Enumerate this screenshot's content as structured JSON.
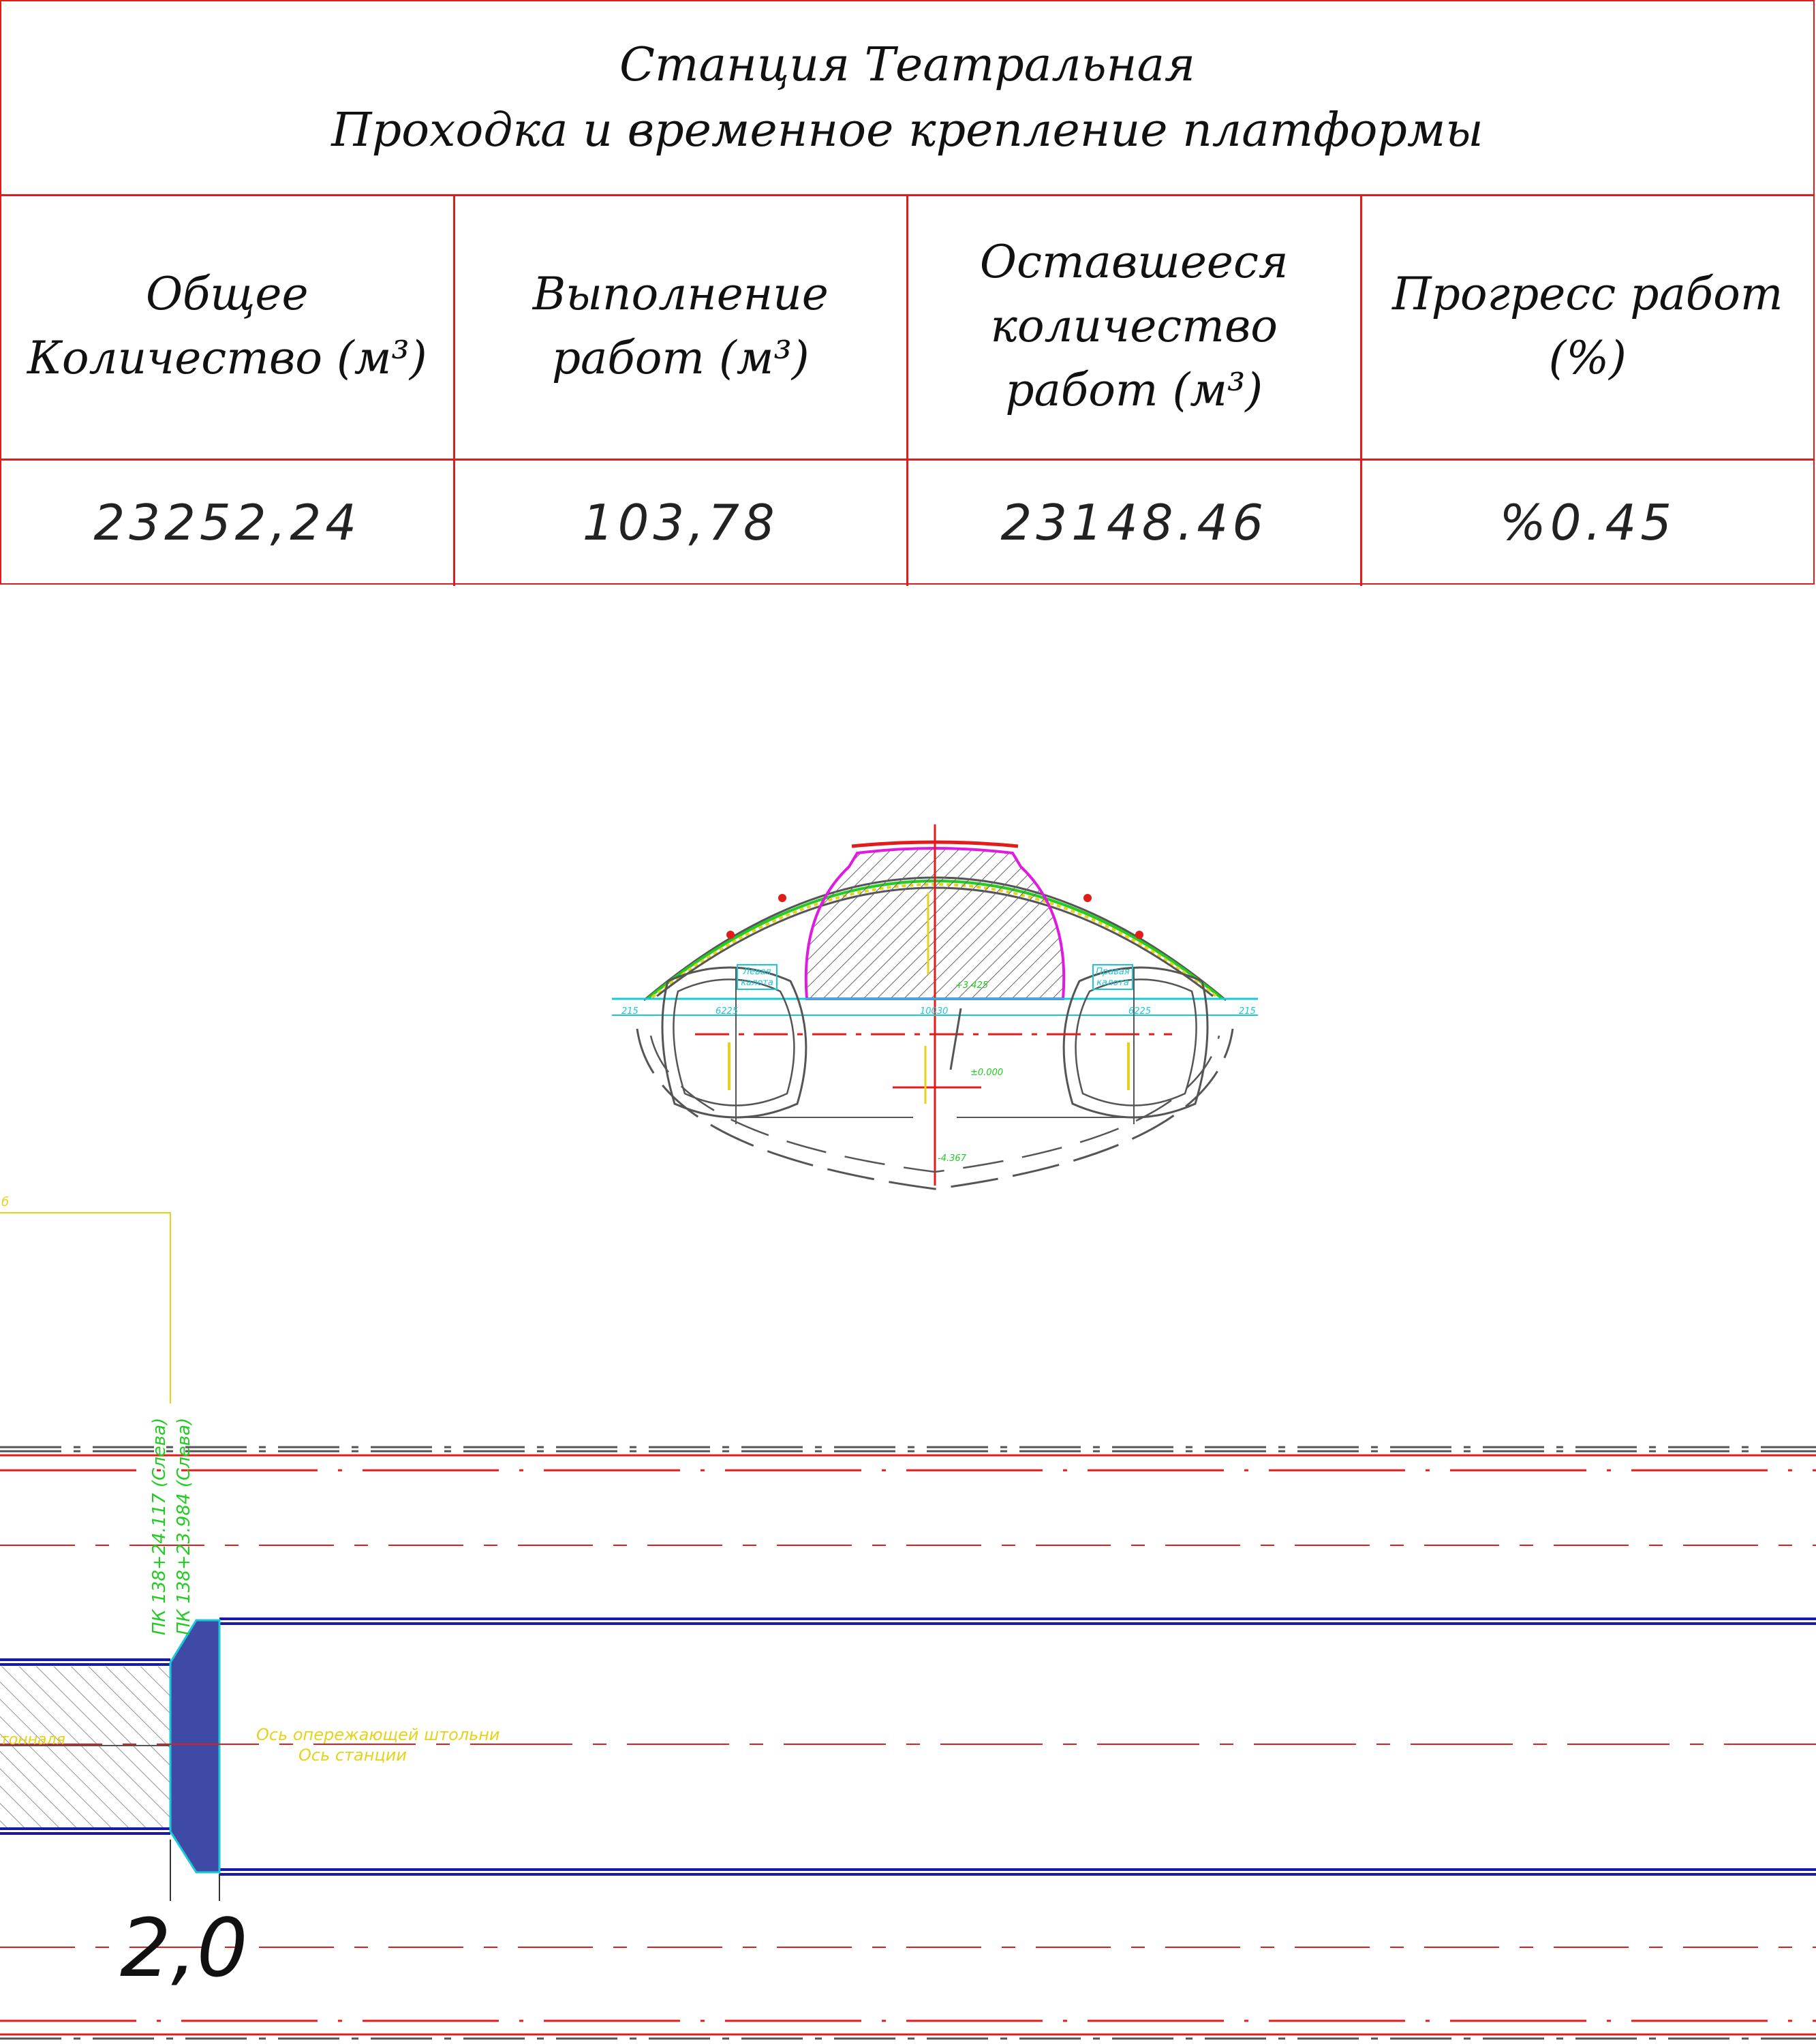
{
  "table": {
    "title_line1": "Станция Театральная",
    "title_line2": "Проходка и временное крепление платформы",
    "headers": [
      "Общее Количество (м³)",
      "Выполнение работ (м³)",
      "Оставшееся количество работ (м³)",
      "Прогресс работ (%)"
    ],
    "values": [
      "23252,24",
      "103,78",
      "23148.46",
      "%0.45"
    ]
  },
  "cross_section": {
    "left_label_1": "Левая",
    "left_label_2": "калота",
    "right_label_1": "Правая",
    "right_label_2": "калота",
    "dim_215_left": "215",
    "dim_left": "6225",
    "dim_center": "10030",
    "dim_right": "6225",
    "dim_215_right": "215",
    "elev_top": "+3.425",
    "elev_zero": "±0.000",
    "elev_bottom": "-4.367"
  },
  "plan": {
    "pk_label_1": "ПК 138+24.117 (Слева)",
    "pk_label_2": "ПК 138+23.984 (Слева)",
    "axis_label_1": "Ось опережающей штольни",
    "axis_label_2": "Ось станции",
    "left_label": "тонналя",
    "dimension": "2,0",
    "top_left_mark": "б"
  },
  "colors": {
    "grid_red": "#e21b1b",
    "blue": "#1a1aa8",
    "fill_blue": "#3f4aa6",
    "cyan": "#19c8d8",
    "green": "#22cc22",
    "yellow": "#e6d21a",
    "magenta": "#e01ae0"
  }
}
